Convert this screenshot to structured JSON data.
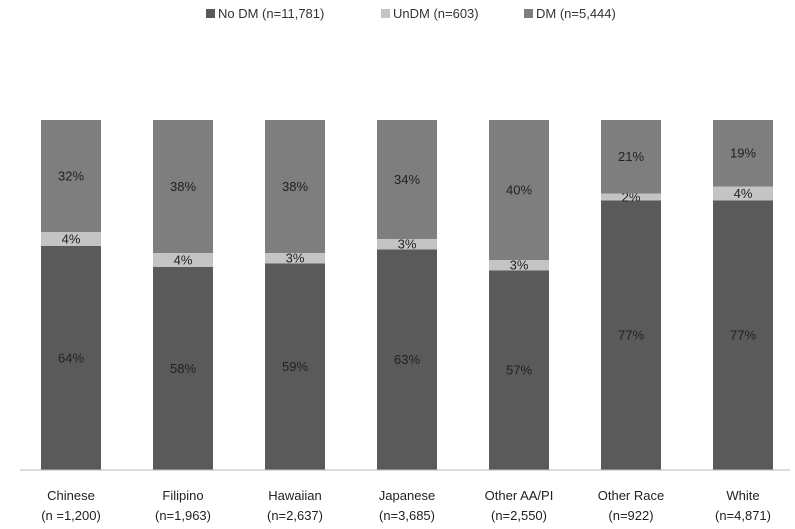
{
  "chart_data": {
    "type": "bar",
    "stacked": true,
    "normalized": true,
    "categories": [
      "Chinese",
      "Filipino",
      "Hawaiian",
      "Japanese",
      "Other AA/PI",
      "Other Race",
      "White"
    ],
    "category_n": [
      "(n =1,200)",
      "(n=1,963)",
      "(n=2,637)",
      "(n=3,685)",
      "(n=2,550)",
      "(n=922)",
      "(n=4,871)"
    ],
    "series": [
      {
        "name": "No DM (n=11,781)",
        "color": "#5a5a5a",
        "values": [
          64,
          58,
          59,
          63,
          57,
          77,
          77
        ],
        "labels": [
          "64%",
          "58%",
          "59%",
          "63%",
          "57%",
          "77%",
          "77%"
        ]
      },
      {
        "name": "UnDM (n=603)",
        "color": "#c4c4c4",
        "values": [
          4,
          4,
          3,
          3,
          3,
          2,
          4
        ],
        "labels": [
          "4%",
          "4%",
          "3%",
          "3%",
          "3%",
          "2%",
          "4%"
        ]
      },
      {
        "name": "DM (n=5,444)",
        "color": "#7e7e7e",
        "values": [
          32,
          38,
          38,
          34,
          40,
          21,
          19
        ],
        "labels": [
          "32%",
          "38%",
          "38%",
          "34%",
          "40%",
          "21%",
          "19%"
        ]
      }
    ],
    "ylim": [
      0,
      100
    ],
    "legend_position": "top-center",
    "grid": false
  }
}
